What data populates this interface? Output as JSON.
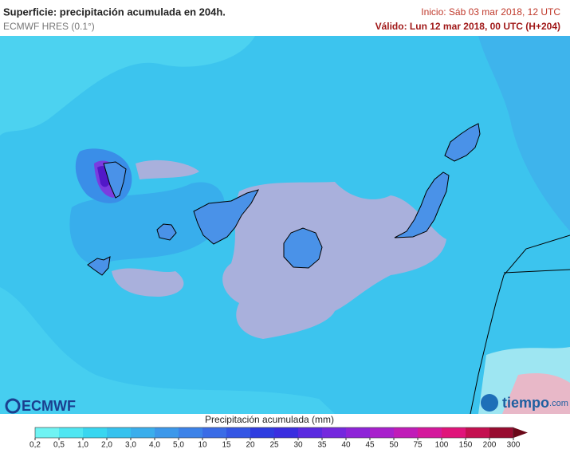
{
  "header": {
    "title": "Superficie: precipitación acumulada en 204h.",
    "model": "ECMWF HRES (0.1°)",
    "init": "Inicio: Sáb 03 mar 2018, 12 UTC",
    "valid": "Válido: Lun 12 mar 2018, 00 UTC (H+204)"
  },
  "legend": {
    "title": "Precipitación acumulada (mm)",
    "ticks": [
      "0,2",
      "0,5",
      "1,0",
      "2,0",
      "3,0",
      "4,0",
      "5,0",
      "10",
      "15",
      "20",
      "25",
      "30",
      "35",
      "40",
      "45",
      "50",
      "75",
      "100",
      "150",
      "200",
      "300"
    ],
    "colors": [
      "#6ff3f3",
      "#4fe6f2",
      "#38d6f0",
      "#36c2ee",
      "#3aaeec",
      "#3c98ea",
      "#3c82e8",
      "#3a6ce6",
      "#3456e4",
      "#2e3ce0",
      "#3a2ee0",
      "#5a2ae0",
      "#7428de",
      "#8e24d8",
      "#a820cc",
      "#c01cb8",
      "#d4189c",
      "#e0147a",
      "#c41050",
      "#980c30"
    ],
    "arrow_color": "#6a0818"
  },
  "logos": {
    "ecmwf": "ECMWF",
    "tiempo": "tiempo",
    "tiempo_suffix": ".com"
  }
}
